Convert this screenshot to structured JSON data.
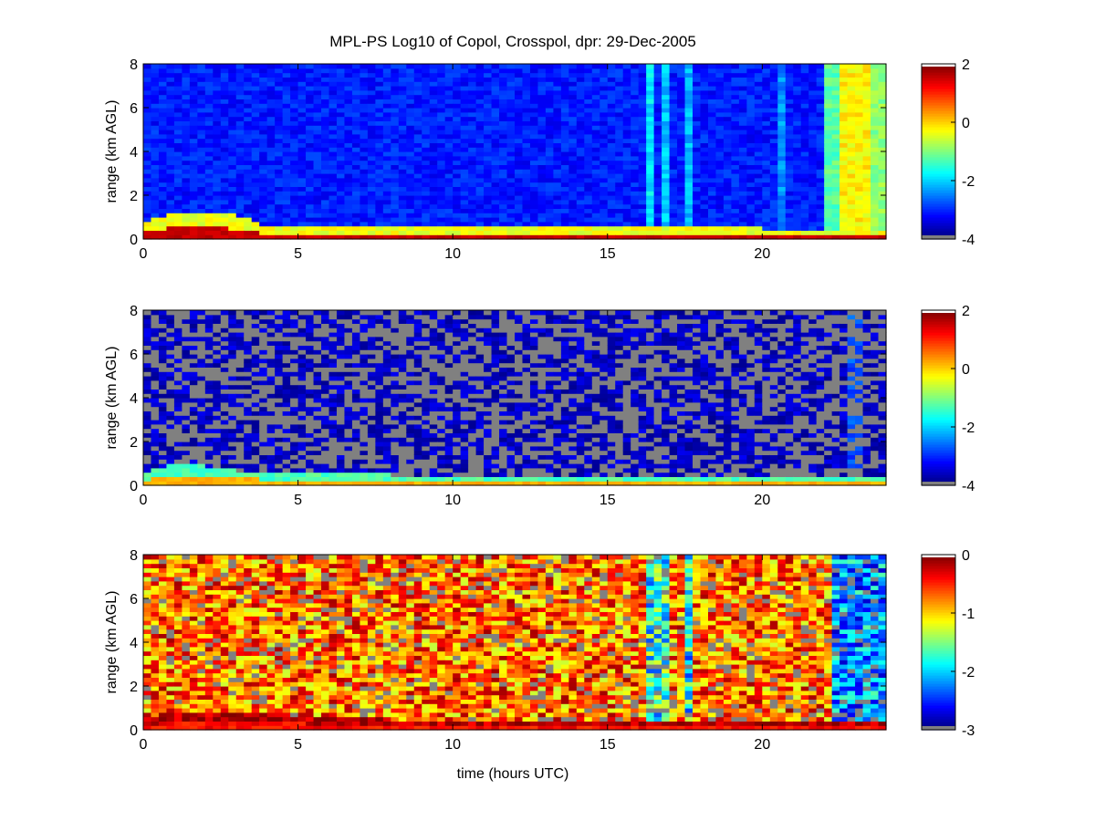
{
  "figure": {
    "title": "MPL-PS Log10 of Copol, Crosspol, dpr: 29-Dec-2005",
    "xlabel": "time (hours UTC)",
    "colors": {
      "nodata": "#808080",
      "axis": "#000000",
      "background": "#ffffff"
    },
    "colormap": "jet"
  },
  "chart_data": [
    {
      "type": "heatmap",
      "name": "copol",
      "title": "MPL-PS Log10 of Copol, Crosspol, dpr: 29-Dec-2005",
      "xlabel": "",
      "ylabel": "range (km AGL)",
      "xlim": [
        0,
        24
      ],
      "ylim": [
        0,
        8
      ],
      "xticks": [
        "0",
        "5",
        "10",
        "15",
        "20"
      ],
      "yticks": [
        "0",
        "2",
        "4",
        "6",
        "8"
      ],
      "colorbar": {
        "range": [
          -4,
          2
        ],
        "ticks": [
          "-4",
          "-2",
          "0",
          "2"
        ]
      },
      "colormap": "jet",
      "background_log10": -3.1,
      "boundary_layer_top_km": [
        {
          "t": 0,
          "z": 0.8
        },
        {
          "t": 1,
          "z": 1.2
        },
        {
          "t": 3,
          "z": 1.1
        },
        {
          "t": 4,
          "z": 0.6
        },
        {
          "t": 8,
          "z": 0.55
        },
        {
          "t": 10,
          "z": 0.5
        },
        {
          "t": 16,
          "z": 0.55
        },
        {
          "t": 20,
          "z": 0.5
        },
        {
          "t": 22,
          "z": 0.5
        },
        {
          "t": 24,
          "z": 0.4
        }
      ],
      "near_surface_log10": 1.6,
      "vertical_features": [
        {
          "t_start": 16.3,
          "t_end": 16.6,
          "log10": -1.9
        },
        {
          "t_start": 16.8,
          "t_end": 17.0,
          "log10": -2.1
        },
        {
          "t_start": 17.5,
          "t_end": 17.7,
          "log10": -2.2
        },
        {
          "t_start": 20.5,
          "t_end": 20.7,
          "log10": -2.4
        },
        {
          "t_start": 22.1,
          "t_end": 22.6,
          "log10": -1.2
        },
        {
          "t_start": 22.6,
          "t_end": 23.4,
          "log10": -0.2
        },
        {
          "t_start": 23.4,
          "t_end": 24.0,
          "log10": -0.9
        }
      ],
      "nodata_fraction_above_bl": 0.0
    },
    {
      "type": "heatmap",
      "name": "crosspol",
      "xlabel": "",
      "ylabel": "range (km AGL)",
      "xlim": [
        0,
        24
      ],
      "ylim": [
        0,
        8
      ],
      "xticks": [
        "0",
        "5",
        "10",
        "15",
        "20"
      ],
      "yticks": [
        "0",
        "2",
        "4",
        "6",
        "8"
      ],
      "colorbar": {
        "range": [
          -4,
          2
        ],
        "ticks": [
          "-4",
          "-2",
          "0",
          "2"
        ]
      },
      "colormap": "jet",
      "background_log10": -3.6,
      "boundary_layer_top_km": [
        {
          "t": 0,
          "z": 0.6
        },
        {
          "t": 1,
          "z": 1.0
        },
        {
          "t": 2,
          "z": 0.9
        },
        {
          "t": 3,
          "z": 0.7
        },
        {
          "t": 8,
          "z": 0.5
        },
        {
          "t": 16,
          "z": 0.5
        },
        {
          "t": 22,
          "z": 0.45
        },
        {
          "t": 24,
          "z": 0.4
        }
      ],
      "near_surface_log10": 0.2,
      "vertical_features": [
        {
          "t_start": 22.8,
          "t_end": 23.2,
          "log10": -2.8
        }
      ],
      "nodata_fraction_above_bl": 0.45
    },
    {
      "type": "heatmap",
      "name": "dpr",
      "xlabel": "time (hours UTC)",
      "ylabel": "range (km AGL)",
      "xlim": [
        0,
        24
      ],
      "ylim": [
        0,
        8
      ],
      "xticks": [
        "0",
        "5",
        "10",
        "15",
        "20"
      ],
      "yticks": [
        "0",
        "2",
        "4",
        "6",
        "8"
      ],
      "colorbar": {
        "range": [
          -3,
          0
        ],
        "ticks": [
          "-3",
          "-2",
          "-1",
          "0"
        ]
      },
      "colormap": "jet",
      "background_log10": -0.7,
      "boundary_layer_top_km": [
        {
          "t": 0,
          "z": 0.5
        },
        {
          "t": 1,
          "z": 0.9
        },
        {
          "t": 3,
          "z": 0.8
        },
        {
          "t": 8,
          "z": 0.5
        },
        {
          "t": 16,
          "z": 0.5
        },
        {
          "t": 24,
          "z": 0.4
        }
      ],
      "near_surface_log10": -0.4,
      "vertical_features": [
        {
          "t_start": 16.3,
          "t_end": 17.1,
          "log10": -1.8
        },
        {
          "t_start": 17.4,
          "t_end": 17.8,
          "log10": -1.9
        },
        {
          "t_start": 22.2,
          "t_end": 24.0,
          "log10": -2.2
        }
      ],
      "nodata_fraction_above_bl": 0.12
    }
  ]
}
